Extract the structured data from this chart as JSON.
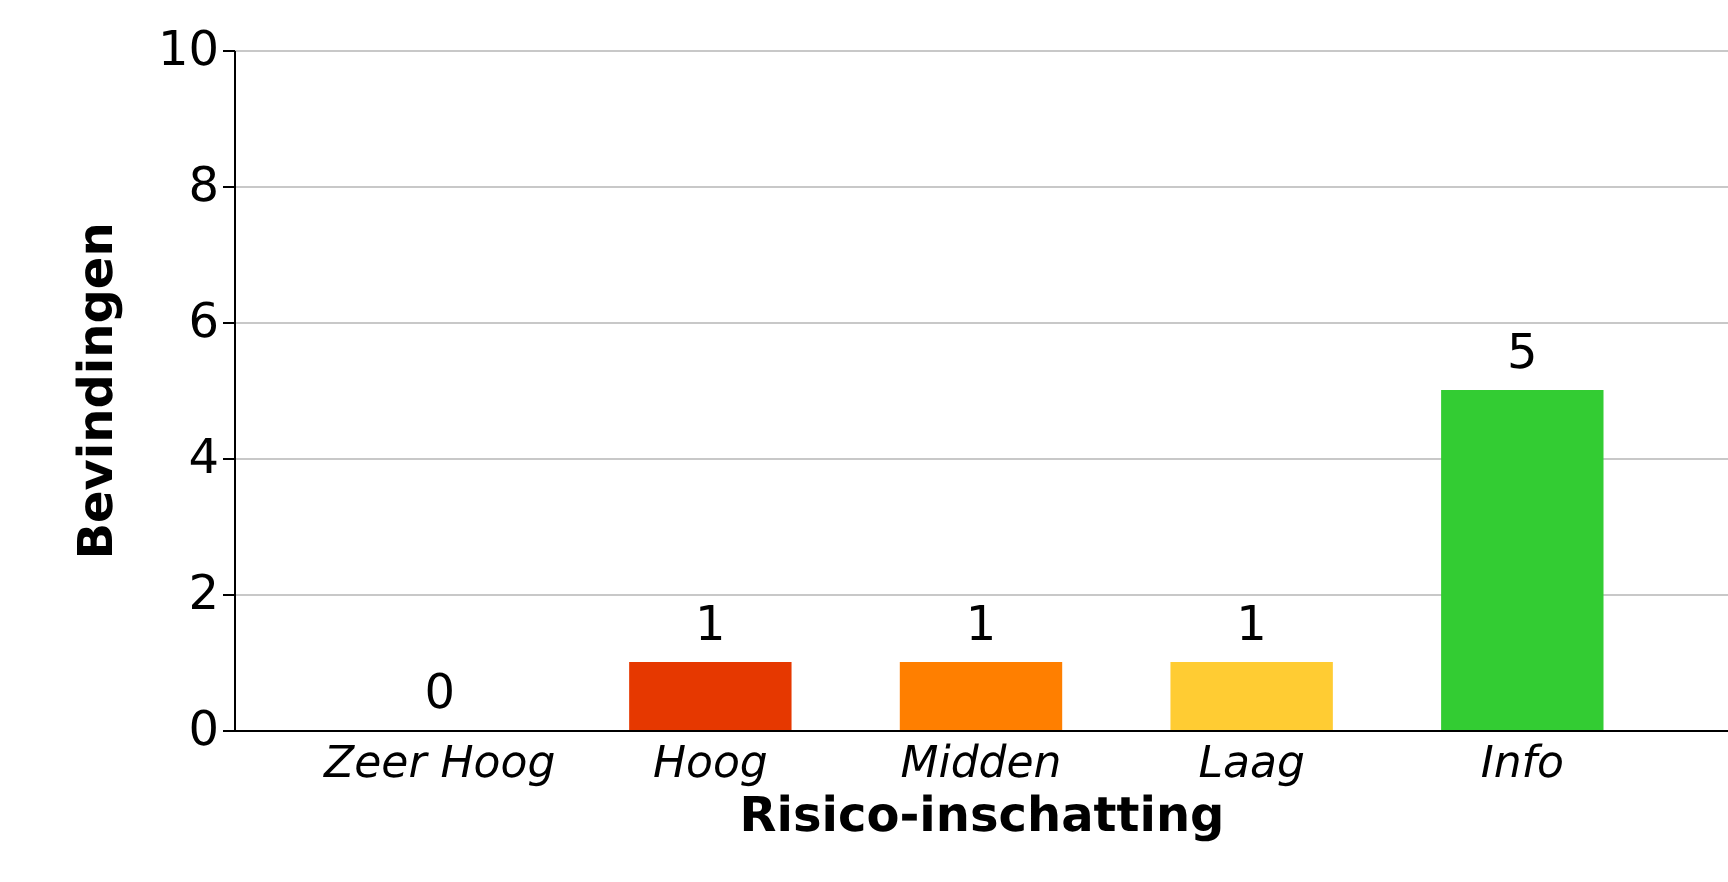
{
  "chart_data": {
    "type": "bar",
    "xlabel": "Risico-inschatting",
    "ylabel": "Bevindingen",
    "categories": [
      "Zeer Hoog",
      "Hoog",
      "Midden",
      "Laag",
      "Info"
    ],
    "values": [
      0,
      1,
      1,
      1,
      5
    ],
    "colors": [
      "#cc0000",
      "#e63800",
      "#ff7f00",
      "#ffcc33",
      "#33cc33"
    ],
    "ylim": [
      0,
      10
    ],
    "yticks": [
      0,
      2,
      4,
      6,
      8,
      10
    ],
    "grid": "y",
    "data_labels": true
  }
}
